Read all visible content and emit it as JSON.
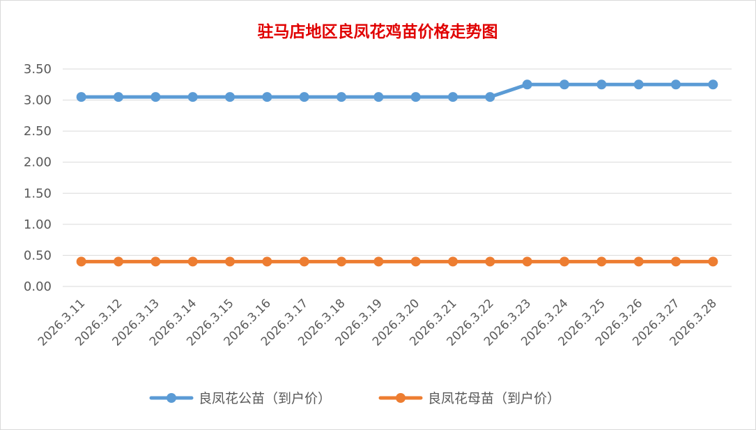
{
  "chart_data": {
    "type": "line",
    "title": "驻马店地区良凤花鸡苗价格走势图",
    "xlabel": "",
    "ylabel": "",
    "categories": [
      "2026.3.11",
      "2026.3.12",
      "2026.3.13",
      "2026.3.14",
      "2026.3.15",
      "2026.3.16",
      "2026.3.17",
      "2026.3.18",
      "2026.3.19",
      "2026.3.20",
      "2026.3.21",
      "2026.3.22",
      "2026.3.23",
      "2026.3.24",
      "2026.3.25",
      "2026.3.26",
      "2026.3.27",
      "2026.3.28"
    ],
    "series": [
      {
        "name": "良凤花公苗（到户价）",
        "color": "#5b9bd5",
        "values": [
          3.05,
          3.05,
          3.05,
          3.05,
          3.05,
          3.05,
          3.05,
          3.05,
          3.05,
          3.05,
          3.05,
          3.05,
          3.25,
          3.25,
          3.25,
          3.25,
          3.25,
          3.25
        ]
      },
      {
        "name": "良凤花母苗（到户价）",
        "color": "#ed7d31",
        "values": [
          0.4,
          0.4,
          0.4,
          0.4,
          0.4,
          0.4,
          0.4,
          0.4,
          0.4,
          0.4,
          0.4,
          0.4,
          0.4,
          0.4,
          0.4,
          0.4,
          0.4,
          0.4
        ]
      }
    ],
    "ylim": [
      0,
      3.5
    ],
    "yticks": [
      "0.00",
      "0.50",
      "1.00",
      "1.50",
      "2.00",
      "2.50",
      "3.00",
      "3.50"
    ],
    "grid": true,
    "legend": "bottom",
    "title_color": "#e00000"
  }
}
